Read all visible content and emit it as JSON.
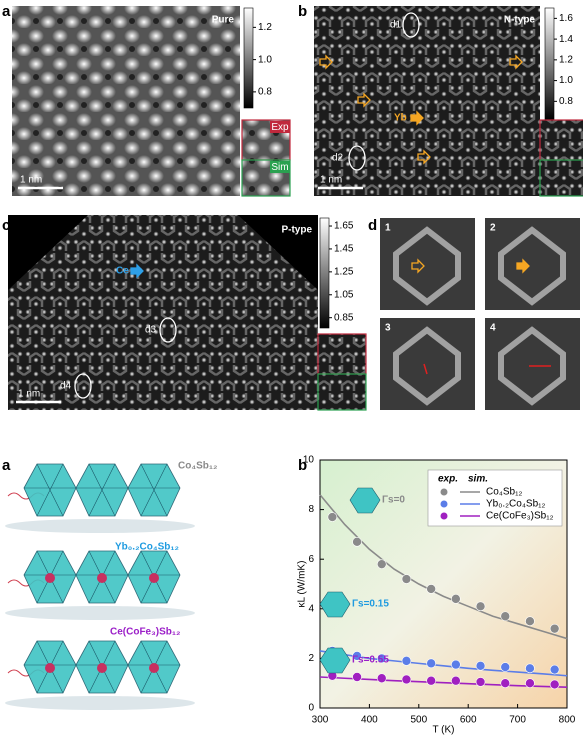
{
  "panels": [
    {
      "label": "a",
      "title": "Pure",
      "scale_bar": "1 nm",
      "inset_labels": [
        "Exp",
        "Sim"
      ],
      "colorbar": {
        "lim": [
          0.7,
          1.32
        ],
        "ticks": [
          0.8,
          {
            "value": 1,
            "label": "1.0"
          },
          1.2
        ]
      }
    },
    {
      "label": "b",
      "title": "N-type",
      "scale_bar": "1 nm",
      "markers": [
        "d1",
        "d2"
      ],
      "dopant": "Yb",
      "colorbar": {
        "lim": [
          0.62,
          1.7
        ],
        "ticks": [
          0.8,
          {
            "value": 1,
            "label": "1.0"
          },
          1.2,
          1.4,
          1.6
        ]
      }
    },
    {
      "label": "c",
      "title": "P-type",
      "scale_bar": "1 nm",
      "markers": [
        "d3",
        "d4"
      ],
      "dopant": "Ce",
      "colorbar": {
        "lim": [
          0.76,
          1.72
        ],
        "ticks": [
          0.85,
          1.05,
          1.25,
          1.45,
          1.65
        ]
      }
    },
    {
      "label": "d",
      "tiles": [
        "1",
        "2",
        "3",
        "4"
      ]
    }
  ],
  "structures": {
    "label": "a",
    "compounds": [
      "Co₄Sb₁₂",
      "Yb₀.₂Co₄Sb₁₂",
      "Ce(CoFe₃)Sb₁₂"
    ],
    "colors": [
      "#8a8a8a",
      "#1e9be0",
      "#9b1fc8"
    ]
  },
  "chart_data": {
    "type": "scatter",
    "label": "b",
    "xlabel": "T (K)",
    "ylabel": "κL (W/mK)",
    "legend_title": [
      "exp.",
      "sim."
    ],
    "legend": "upper right",
    "xlim": [
      300,
      800
    ],
    "xticks": [
      300,
      400,
      500,
      600,
      700,
      800
    ],
    "ylim": [
      0,
      10
    ],
    "yticks": [
      0,
      2,
      4,
      6,
      8,
      10
    ],
    "x": [
      325,
      375,
      425,
      475,
      525,
      575,
      625,
      675,
      725,
      775
    ],
    "sim_x": [
      300,
      350,
      400,
      450,
      500,
      550,
      600,
      650,
      700,
      750,
      800
    ],
    "series": [
      {
        "name": "Co₄Sb₁₂",
        "color": "#8a8a8a",
        "values": [
          7.7,
          6.7,
          5.8,
          5.2,
          4.8,
          4.4,
          4.1,
          3.7,
          3.5,
          3.2
        ],
        "sim_values": [
          8.6,
          7.4,
          6.4,
          5.6,
          5.0,
          4.5,
          4.1,
          3.7,
          3.4,
          3.1,
          2.8
        ],
        "annotation": "Γs=0"
      },
      {
        "name": "Yb₀.₂Co₄Sb₁₂",
        "color": "#5b7de8",
        "values": [
          2.3,
          2.1,
          2.0,
          1.9,
          1.8,
          1.75,
          1.7,
          1.65,
          1.6,
          1.55
        ],
        "sim_values": [
          2.3,
          2.15,
          2.0,
          1.9,
          1.8,
          1.7,
          1.6,
          1.52,
          1.45,
          1.38,
          1.3
        ],
        "annotation": "Γs=0.15"
      },
      {
        "name": "Ce(CoFe₃)Sb₁₂",
        "color": "#a020c0",
        "values": [
          1.3,
          1.25,
          1.2,
          1.15,
          1.1,
          1.1,
          1.05,
          1.0,
          1.0,
          0.95
        ],
        "sim_values": [
          1.25,
          1.2,
          1.15,
          1.1,
          1.06,
          1.02,
          0.98,
          0.94,
          0.9,
          0.87,
          0.84
        ],
        "annotation": "Γs=0.55"
      }
    ]
  }
}
